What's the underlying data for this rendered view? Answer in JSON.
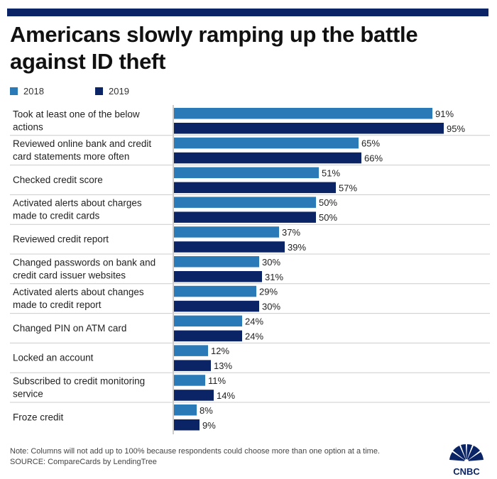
{
  "title": "Americans slowly ramping up the battle against ID theft",
  "colors": {
    "bar_2018": "#2a7ab8",
    "bar_2019": "#0b2466",
    "top_bar": "#0b2466",
    "rule": "#cccccc"
  },
  "legend": [
    {
      "label": "2018",
      "color": "#2a7ab8"
    },
    {
      "label": "2019",
      "color": "#0b2466"
    }
  ],
  "chart_data": {
    "type": "bar",
    "orientation": "horizontal",
    "categories": [
      [
        "Took at least one of the below",
        "actions"
      ],
      [
        "Reviewed online bank and credit",
        "card statements more often"
      ],
      [
        "Checked credit score"
      ],
      [
        "Activated alerts about charges",
        "made to credit cards"
      ],
      [
        "Reviewed credit report"
      ],
      [
        "Changed passwords on bank and",
        "credit card issuer websites"
      ],
      [
        "Activated alerts about changes",
        "made to credit report"
      ],
      [
        "Changed PIN on ATM card"
      ],
      [
        "Locked an account"
      ],
      [
        "Subscribed to credit monitoring",
        "service"
      ],
      [
        "Froze credit"
      ]
    ],
    "series": [
      {
        "name": "2018",
        "values": [
          91,
          65,
          51,
          50,
          37,
          30,
          29,
          24,
          12,
          11,
          8
        ]
      },
      {
        "name": "2019",
        "values": [
          95,
          66,
          57,
          50,
          39,
          31,
          30,
          24,
          13,
          14,
          9
        ]
      }
    ],
    "value_suffix": "%",
    "xlim": [
      0,
      100
    ],
    "grid": false,
    "legend_position": "top-left"
  },
  "note": "Note: Columns will not add up to 100% because respondents could choose more than one option at a time.",
  "source": "SOURCE: CompareCards by LendingTree",
  "logo": {
    "name": "CNBC",
    "text": "CNBC"
  }
}
